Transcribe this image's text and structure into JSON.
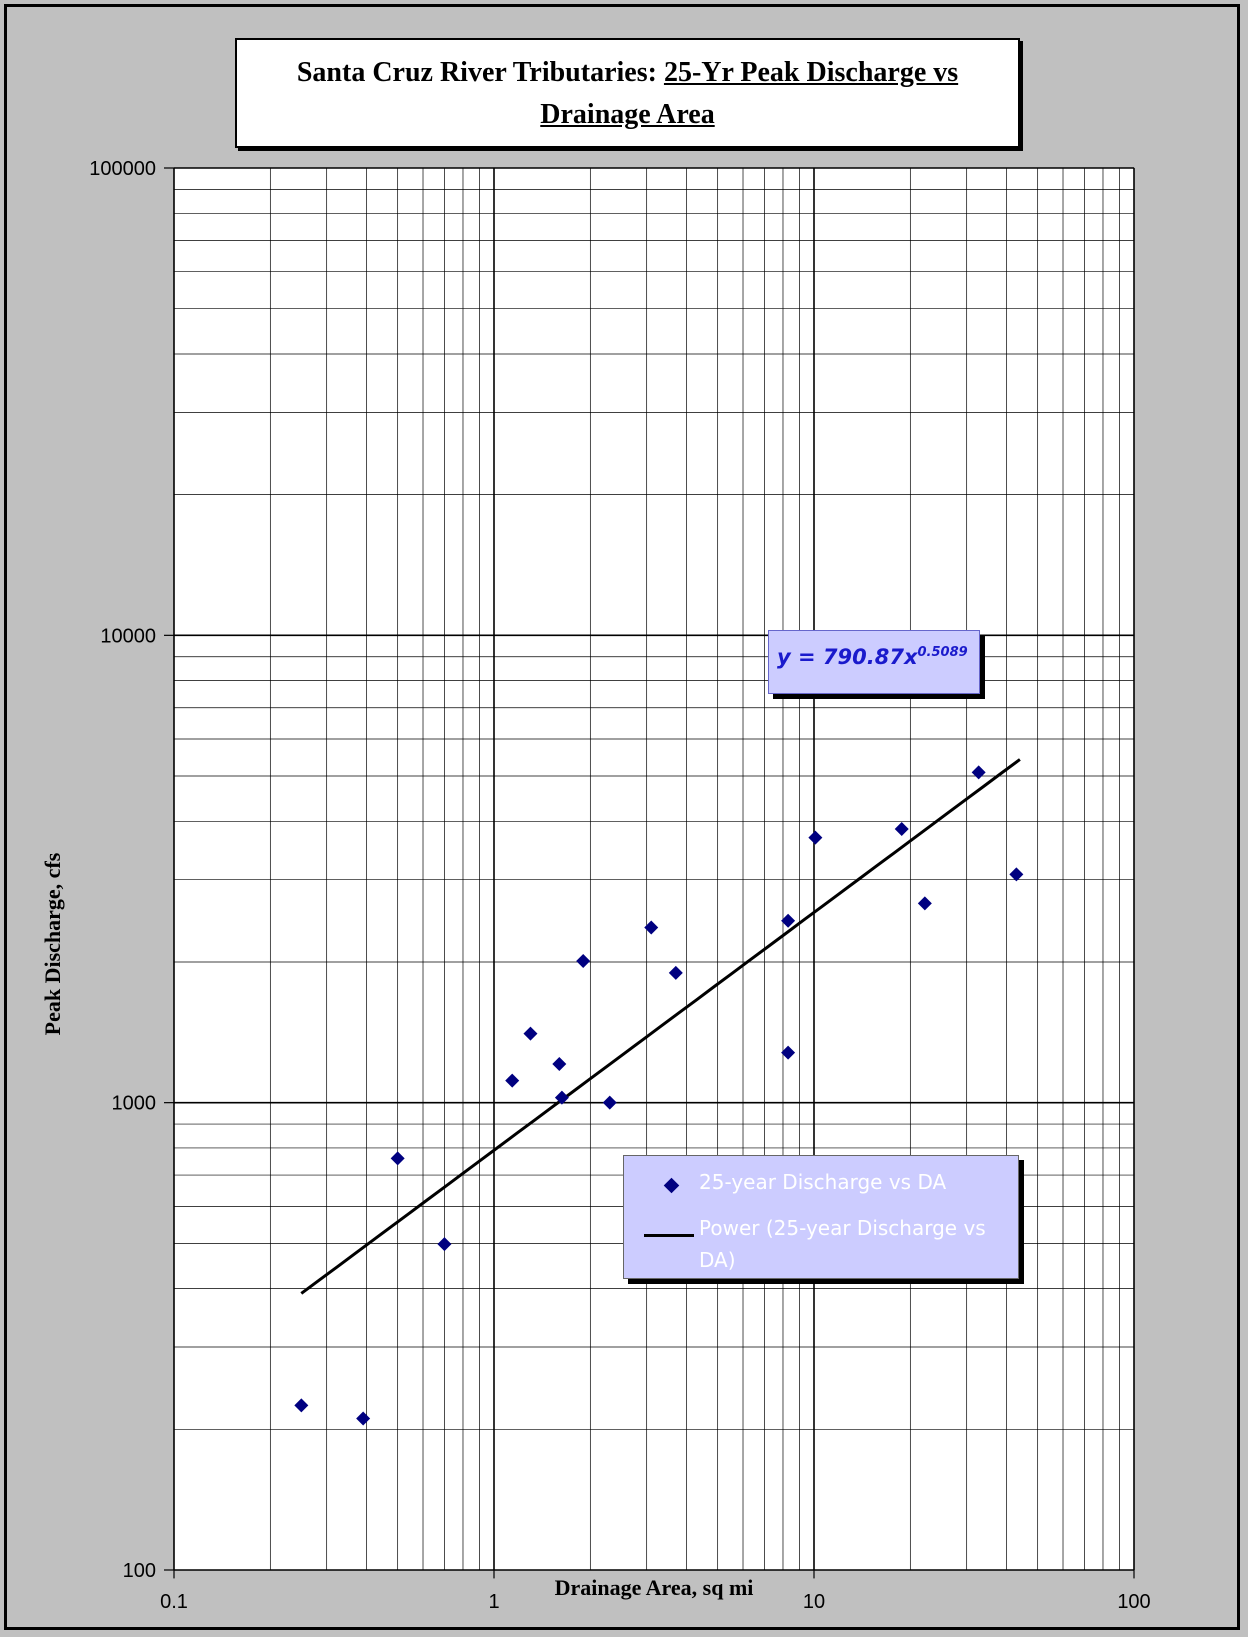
{
  "chart_data": {
    "type": "scatter",
    "title_parts": [
      "Santa Cruz River Tributaries: ",
      "25-Yr Peak Discharge vs",
      "Drainage Area"
    ],
    "xlabel": "Drainage Area, sq mi",
    "ylabel": "Peak Discharge, cfs",
    "xscale": "log",
    "yscale": "log",
    "xlim": [
      0.1,
      100
    ],
    "ylim": [
      100,
      100000
    ],
    "x_ticks": [
      "0.1",
      "1",
      "10",
      "100"
    ],
    "y_ticks": [
      "100",
      "1000",
      "10000",
      "100000"
    ],
    "grid": true,
    "legend_position": "bottom-right",
    "series": [
      {
        "name": "25-year Discharge vs DA",
        "color": "#000080",
        "marker": "diamond",
        "points": [
          [
            0.25,
            225
          ],
          [
            0.39,
            211
          ],
          [
            0.5,
            760
          ],
          [
            0.7,
            498
          ],
          [
            1.14,
            1115
          ],
          [
            1.3,
            1405
          ],
          [
            1.6,
            1210
          ],
          [
            1.63,
            1025
          ],
          [
            1.9,
            2010
          ],
          [
            2.3,
            1000
          ],
          [
            3.1,
            2370
          ],
          [
            3.7,
            1895
          ],
          [
            8.3,
            2450
          ],
          [
            8.3,
            1280
          ],
          [
            10.1,
            3690
          ],
          [
            18.8,
            3850
          ],
          [
            22.2,
            2670
          ],
          [
            32.7,
            5090
          ],
          [
            42.9,
            3080
          ]
        ]
      },
      {
        "name": "Power (25-year Discharge vs DA)",
        "color": "#000000",
        "type": "trendline",
        "coefficient": 790.87,
        "exponent": 0.5089,
        "x_range": [
          0.25,
          44
        ]
      }
    ],
    "equation_label": "y = 790.87x",
    "equation_exponent": "0.5089"
  }
}
